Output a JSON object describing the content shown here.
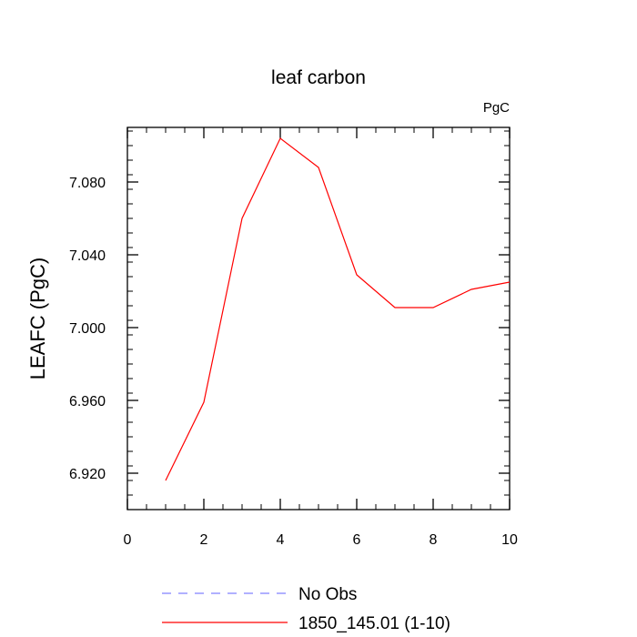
{
  "chart_data": {
    "type": "line",
    "title": "leaf carbon",
    "units_label": "PgC",
    "ylabel": "LEAFC  (PgC)",
    "xlabel": "",
    "xlim": [
      0,
      10
    ],
    "ylim": [
      6.9,
      7.11
    ],
    "x_ticks": [
      0,
      2,
      4,
      6,
      8,
      10
    ],
    "x_tick_labels": [
      "0",
      "2",
      "4",
      "6",
      "8",
      "10"
    ],
    "y_ticks": [
      6.92,
      6.96,
      7.0,
      7.04,
      7.08
    ],
    "y_tick_labels": [
      "6.920",
      "6.960",
      "7.000",
      "7.040",
      "7.080"
    ],
    "grid": false,
    "legend_position": "bottom",
    "series": [
      {
        "name": "No Obs",
        "color": "#8080ff",
        "style": "dashed",
        "x": [],
        "y": []
      },
      {
        "name": "1850_145.01 (1-10)",
        "color": "#ff0000",
        "style": "solid",
        "x": [
          1,
          2,
          3,
          4,
          5,
          6,
          7,
          8,
          9,
          10
        ],
        "y": [
          6.916,
          6.959,
          7.06,
          7.104,
          7.088,
          7.029,
          7.011,
          7.011,
          7.021,
          7.025
        ]
      }
    ]
  }
}
